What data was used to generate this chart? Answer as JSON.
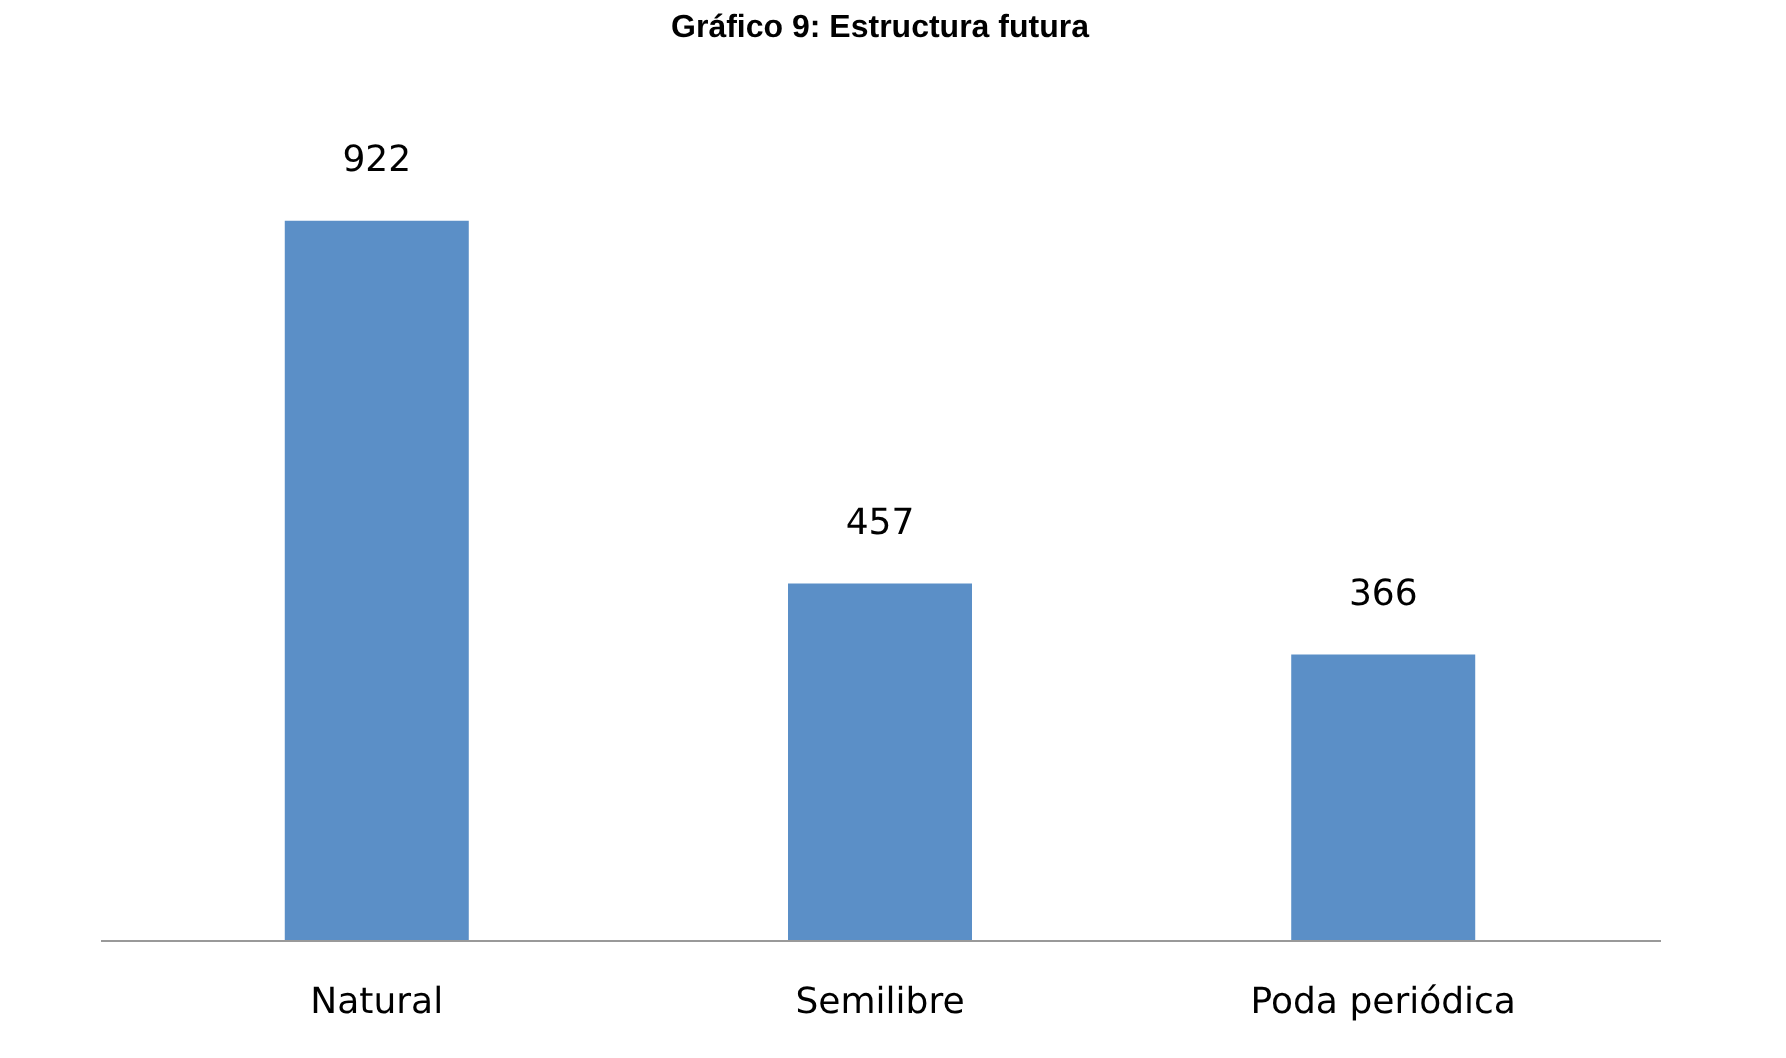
{
  "chart_data": {
    "type": "bar",
    "title": "Gráfico 9: Estructura futura",
    "categories": [
      "Natural",
      "Semilibre",
      "Poda periódica"
    ],
    "values": [
      922,
      457,
      366
    ],
    "color": "#5b8fc7",
    "data_labels": true
  }
}
